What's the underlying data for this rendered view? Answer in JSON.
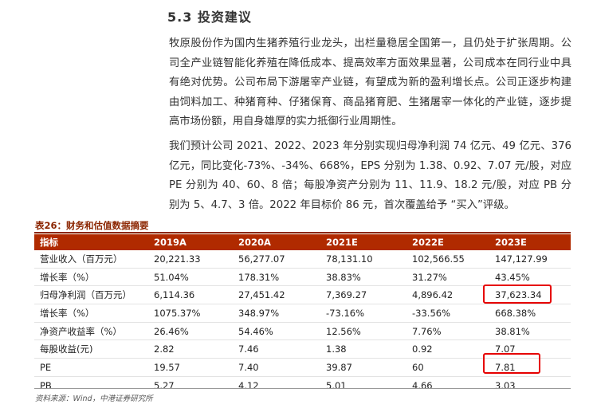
{
  "section": {
    "heading": "5.3 投资建议"
  },
  "paragraphs": [
    "牧原股份作为国内生猪养殖行业龙头，出栏量稳居全国第一，且仍处于扩张周期。公司全产业链智能化养殖在降低成本、提高效率方面效果显著，公司成本在同行业中具有绝对优势。公司布局下游屠宰产业链，有望成为新的盈利增长点。公司正逐步构建由饲料加工、种猪育种、仔猪保育、商品猪育肥、生猪屠宰一体化的产业链，逐步提高市场份额，用自身雄厚的实力抵御行业周期性。",
    "我们预计公司 2021、2022、2023 年分别实现归母净利润 74 亿元、49 亿元、376 亿元，同比变化-73%、-34%、668%，EPS 分别为 1.38、0.92、7.07 元/股，对应 PE 分别为 40、60、8 倍；每股净资产分别为 11、11.9、18.2 元/股，对应 PB 分别为 5、4.7、3 倍。2022 年目标价 86 元，首次覆盖给予 “买入”评级。"
  ],
  "table": {
    "title": "表26：财务和估值数据摘要",
    "headers": [
      "指标",
      "2019A",
      "2020A",
      "2021E",
      "2022E",
      "2023E"
    ],
    "rows": [
      [
        "营业收入（百万元）",
        "20,221.33",
        "56,277.07",
        "78,131.10",
        "102,566.55",
        "147,127.99"
      ],
      [
        "增长率（%）",
        "51.04%",
        "178.31%",
        "38.83%",
        "31.27%",
        "43.45%"
      ],
      [
        "归母净利润（百万元）",
        "6,114.36",
        "27,451.42",
        "7,369.27",
        "4,896.42",
        "37,623.34"
      ],
      [
        "增长率（%）",
        "1075.37%",
        "348.97%",
        "-73.16%",
        "-33.56%",
        "668.38%"
      ],
      [
        "净资产收益率（%）",
        "26.46%",
        "54.46%",
        "12.56%",
        "7.76%",
        "38.81%"
      ],
      [
        "每股收益(元)",
        "2.82",
        "7.46",
        "1.38",
        "0.92",
        "7.07"
      ],
      [
        "PE",
        "19.57",
        "7.40",
        "39.87",
        "60",
        "7.81"
      ],
      [
        "PB",
        "5.27",
        "4.12",
        "5.01",
        "4.66",
        "3.03"
      ]
    ],
    "source": "资料来源：Wind，中港证券研究所"
  },
  "colors": {
    "header_bg": "#B02A00",
    "title": "#8B2500",
    "highlight": "#e60000"
  }
}
